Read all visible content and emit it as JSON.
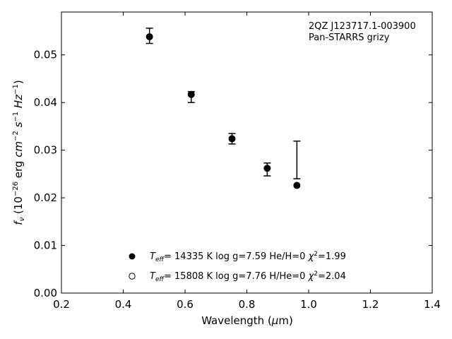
{
  "chart_data": {
    "type": "scatter",
    "annotation": {
      "line1": "2QZ J123717.1-003900",
      "line2": "Pan-STARRS grizy"
    },
    "xlabel": {
      "main": "Wavelength (",
      "mu": "μ",
      "rest": "m)"
    },
    "ylabel": {
      "f": "f",
      "nu": "ν",
      "open": " (10",
      "exp1": "−26",
      "unit1": " erg ",
      "cm": "cm",
      "exp2": "−2",
      "s": " s",
      "exp3": "−1",
      "hz": " Hz",
      "exp4": "−1",
      "close": ")"
    },
    "xlim": [
      0.2,
      1.4
    ],
    "ylim": [
      0.0,
      0.059
    ],
    "xticks": [
      0.2,
      0.4,
      0.6,
      0.8,
      1.0,
      1.2,
      1.4
    ],
    "xtick_labels": [
      "0.2",
      "0.4",
      "0.6",
      "0.8",
      "1.0",
      "1.2",
      "1.4"
    ],
    "yticks": [
      0.0,
      0.01,
      0.02,
      0.03,
      0.04,
      0.05
    ],
    "ytick_labels": [
      "0.00",
      "0.01",
      "0.02",
      "0.03",
      "0.04",
      "0.05"
    ],
    "observed": [
      {
        "x": 0.485,
        "y": 0.054,
        "err_low": 0.0524,
        "err_high": 0.0556
      },
      {
        "x": 0.62,
        "y": 0.0412,
        "err_low": 0.04,
        "err_high": 0.0423
      },
      {
        "x": 0.752,
        "y": 0.0324,
        "err_low": 0.0313,
        "err_high": 0.0335
      },
      {
        "x": 0.866,
        "y": 0.026,
        "err_low": 0.0246,
        "err_high": 0.0273
      },
      {
        "x": 0.962,
        "y": null,
        "err_low": 0.024,
        "err_high": 0.0319
      }
    ],
    "series": [
      {
        "marker": "filled",
        "values": [
          0.0538,
          0.0417,
          0.0324,
          0.0262,
          0.0226
        ],
        "x": [
          0.485,
          0.62,
          0.752,
          0.866,
          0.962
        ],
        "legend": {
          "teff": "T",
          "eff": "eff",
          "text": "= 14335 K  log g=7.59  He/H=0  ",
          "chi": "χ",
          "chi2": "=1.99"
        }
      },
      {
        "marker": "open",
        "values": [],
        "x": [],
        "legend": {
          "teff": "T",
          "eff": "eff",
          "text": "= 15808 K  log g=7.76  H/He=0  ",
          "chi": "χ",
          "chi2": "=2.04"
        }
      }
    ]
  }
}
